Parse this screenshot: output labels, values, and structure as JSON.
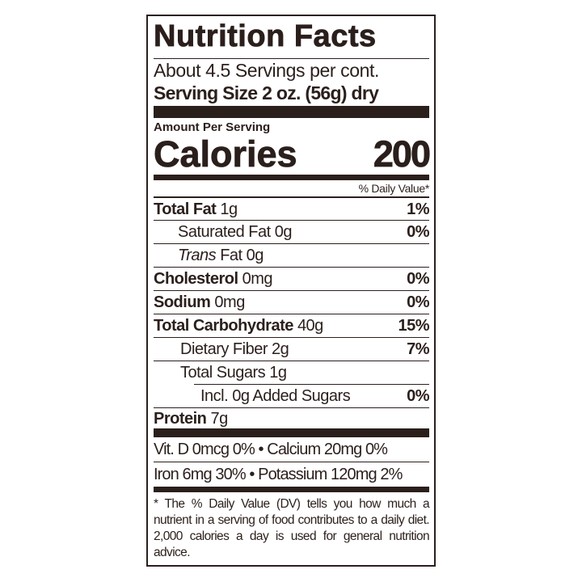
{
  "title": "Nutrition Facts",
  "servings_per_container": "About 4.5 Servings per cont.",
  "serving_size": "Serving Size 2 oz. (56g) dry",
  "amount_per_serving": "Amount Per Serving",
  "calories": {
    "label": "Calories",
    "value": "200"
  },
  "daily_value_header": "% Daily Value*",
  "nutrients": [
    {
      "name": "Total Fat",
      "amount": "1g",
      "dv": "1%"
    },
    {
      "name": "Saturated Fat",
      "amount": "0g",
      "dv": "0%"
    },
    {
      "name": "Trans",
      "name_rest": "Fat",
      "amount": "0g",
      "dv": ""
    },
    {
      "name": "Cholesterol",
      "amount": "0mg",
      "dv": "0%"
    },
    {
      "name": "Sodium",
      "amount": "0mg",
      "dv": "0%"
    },
    {
      "name": "Total Carbohydrate",
      "amount": "40g",
      "dv": "15%"
    },
    {
      "name": "Dietary Fiber",
      "amount": "2g",
      "dv": "7%"
    },
    {
      "name": "Total Sugars",
      "amount": "1g",
      "dv": ""
    },
    {
      "name": "Incl. 0g Added Sugars",
      "amount": "",
      "dv": "0%"
    },
    {
      "name": "Protein",
      "amount": "7g",
      "dv": ""
    }
  ],
  "micronutrients": [
    "Vit. D 0mcg 0% • Calcium 20mg 0%",
    "Iron 6mg 30% • Potassium 120mg 2%"
  ],
  "footnote": "* The % Daily Value (DV) tells you how much a nutrient in a serving of food contributes to a daily diet. 2,000 calories a day is used for general nutrition advice.",
  "colors": {
    "ink": "#2b1f1c",
    "background": "#ffffff"
  }
}
